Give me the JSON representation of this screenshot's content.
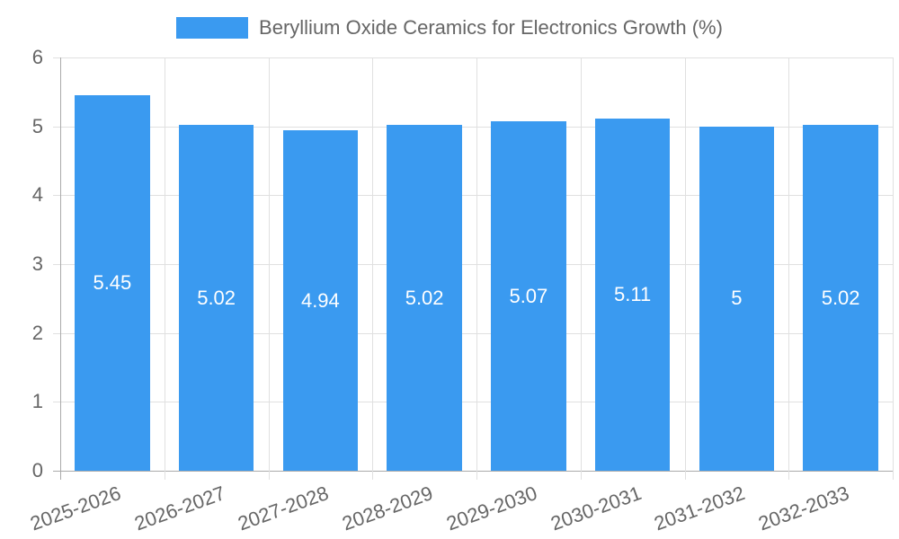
{
  "chart_data": {
    "type": "bar",
    "title": "",
    "legend": [
      "Beryllium Oxide Ceramics for Electronics Growth (%)"
    ],
    "legend_position": "top",
    "categories": [
      "2025-2026",
      "2026-2027",
      "2027-2028",
      "2028-2029",
      "2029-2030",
      "2030-2031",
      "2031-2032",
      "2032-2033"
    ],
    "series": [
      {
        "name": "Beryllium Oxide Ceramics for Electronics Growth (%)",
        "values": [
          5.45,
          5.02,
          4.94,
          5.02,
          5.07,
          5.11,
          5,
          5.02
        ],
        "color": "#3a9af0"
      }
    ],
    "data_labels": [
      "5.45",
      "5.02",
      "4.94",
      "5.02",
      "5.07",
      "5.11",
      "5",
      "5.02"
    ],
    "xlabel": "",
    "ylabel": "",
    "ylim": [
      0,
      6
    ],
    "yticks": [
      "0",
      "1",
      "2",
      "3",
      "4",
      "5",
      "6"
    ],
    "grid": true
  }
}
